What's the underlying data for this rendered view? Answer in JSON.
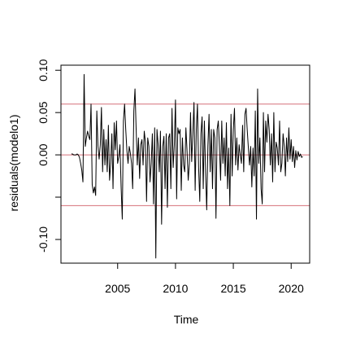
{
  "chart_data": {
    "type": "line",
    "title": "",
    "xlabel": "Time",
    "ylabel": "residuals(modelo1)",
    "xlim": [
      2000.1,
      2021.6
    ],
    "ylim": [
      -0.128,
      0.106
    ],
    "x_ticks": [
      2005,
      2010,
      2015,
      2020
    ],
    "x_tick_labels": [
      "2005",
      "2010",
      "2015",
      "2020"
    ],
    "y_ticks": [
      -0.1,
      -0.05,
      0.0,
      0.05,
      0.1
    ],
    "y_tick_labels": [
      "-0.10",
      "",
      "0.00",
      "0.05",
      "0.10"
    ],
    "grid": false,
    "legend": "none",
    "series": [
      {
        "color": "#000000",
        "points": [
          [
            2001.0,
            0.001
          ],
          [
            2001.1,
            0.001
          ],
          [
            2001.2,
            0.0
          ],
          [
            2001.3,
            0.0
          ],
          [
            2001.4,
            0.0
          ],
          [
            2001.5,
            0.001
          ],
          [
            2001.6,
            0.0
          ],
          [
            2001.7,
            -0.003
          ],
          [
            2001.8,
            -0.01
          ],
          [
            2001.9,
            -0.018
          ],
          [
            2002.0,
            -0.032
          ],
          [
            2002.1,
            0.095
          ],
          [
            2002.2,
            0.01
          ],
          [
            2002.3,
            0.02
          ],
          [
            2002.4,
            0.028
          ],
          [
            2002.5,
            0.022
          ],
          [
            2002.6,
            0.018
          ],
          [
            2002.7,
            0.06
          ],
          [
            2002.8,
            -0.035
          ],
          [
            2002.9,
            -0.045
          ],
          [
            2003.0,
            -0.038
          ],
          [
            2003.1,
            -0.048
          ],
          [
            2003.2,
            0.052
          ],
          [
            2003.3,
            0.01
          ],
          [
            2003.4,
            -0.005
          ],
          [
            2003.5,
            0.012
          ],
          [
            2003.6,
            0.056
          ],
          [
            2003.7,
            -0.02
          ],
          [
            2003.8,
            0.03
          ],
          [
            2003.9,
            -0.012
          ],
          [
            2004.0,
            0.018
          ],
          [
            2004.1,
            -0.02
          ],
          [
            2004.2,
            0.035
          ],
          [
            2004.3,
            -0.03
          ],
          [
            2004.4,
            -0.01
          ],
          [
            2004.5,
            0.025
          ],
          [
            2004.6,
            -0.04
          ],
          [
            2004.7,
            0.038
          ],
          [
            2004.8,
            0.006
          ],
          [
            2004.9,
            0.04
          ],
          [
            2005.0,
            -0.01
          ],
          [
            2005.1,
            -0.002
          ],
          [
            2005.2,
            0.012
          ],
          [
            2005.3,
            -0.038
          ],
          [
            2005.4,
            -0.076
          ],
          [
            2005.5,
            0.04
          ],
          [
            2005.6,
            0.06
          ],
          [
            2005.7,
            0.03
          ],
          [
            2005.8,
            0.005
          ],
          [
            2005.9,
            -0.01
          ],
          [
            2006.0,
            0.01
          ],
          [
            2006.1,
            0.002
          ],
          [
            2006.2,
            -0.01
          ],
          [
            2006.3,
            -0.04
          ],
          [
            2006.4,
            0.052
          ],
          [
            2006.5,
            0.078
          ],
          [
            2006.6,
            0.03
          ],
          [
            2006.7,
            -0.012
          ],
          [
            2006.8,
            0.02
          ],
          [
            2006.9,
            -0.028
          ],
          [
            2007.0,
            0.012
          ],
          [
            2007.1,
            0.018
          ],
          [
            2007.2,
            -0.012
          ],
          [
            2007.3,
            0.028
          ],
          [
            2007.4,
            0.015
          ],
          [
            2007.5,
            -0.055
          ],
          [
            2007.6,
            0.02
          ],
          [
            2007.7,
            0.01
          ],
          [
            2007.8,
            -0.032
          ],
          [
            2007.9,
            -0.01
          ],
          [
            2008.0,
            0.025
          ],
          [
            2008.1,
            -0.058
          ],
          [
            2008.2,
            0.032
          ],
          [
            2008.3,
            -0.122
          ],
          [
            2008.4,
            0.03
          ],
          [
            2008.5,
            0.012
          ],
          [
            2008.6,
            -0.02
          ],
          [
            2008.7,
            0.028
          ],
          [
            2008.8,
            -0.082
          ],
          [
            2008.9,
            0.01
          ],
          [
            2009.0,
            0.022
          ],
          [
            2009.1,
            -0.04
          ],
          [
            2009.2,
            0.025
          ],
          [
            2009.3,
            -0.062
          ],
          [
            2009.4,
            0.02
          ],
          [
            2009.5,
            0.025
          ],
          [
            2009.6,
            -0.04
          ],
          [
            2009.7,
            0.055
          ],
          [
            2009.8,
            -0.015
          ],
          [
            2009.9,
            0.012
          ],
          [
            2010.0,
            0.065
          ],
          [
            2010.1,
            -0.052
          ],
          [
            2010.2,
            0.032
          ],
          [
            2010.3,
            0.025
          ],
          [
            2010.4,
            0.03
          ],
          [
            2010.5,
            -0.042
          ],
          [
            2010.6,
            0.02
          ],
          [
            2010.7,
            -0.012
          ],
          [
            2010.8,
            -0.02
          ],
          [
            2010.9,
            0.032
          ],
          [
            2011.0,
            0.005
          ],
          [
            2011.1,
            -0.03
          ],
          [
            2011.2,
            -0.01
          ],
          [
            2011.3,
            0.05
          ],
          [
            2011.4,
            -0.008
          ],
          [
            2011.5,
            0.025
          ],
          [
            2011.6,
            0.062
          ],
          [
            2011.7,
            -0.042
          ],
          [
            2011.8,
            0.03
          ],
          [
            2011.9,
            0.06
          ],
          [
            2012.0,
            -0.015
          ],
          [
            2012.1,
            -0.055
          ],
          [
            2012.2,
            0.025
          ],
          [
            2012.3,
            0.045
          ],
          [
            2012.4,
            -0.04
          ],
          [
            2012.5,
            0.04
          ],
          [
            2012.6,
            -0.02
          ],
          [
            2012.7,
            -0.065
          ],
          [
            2012.8,
            0.01
          ],
          [
            2012.9,
            0.048
          ],
          [
            2013.0,
            -0.02
          ],
          [
            2013.1,
            0.03
          ],
          [
            2013.2,
            -0.04
          ],
          [
            2013.3,
            0.03
          ],
          [
            2013.4,
            0.02
          ],
          [
            2013.5,
            -0.075
          ],
          [
            2013.6,
            0.03
          ],
          [
            2013.7,
            0.04
          ],
          [
            2013.8,
            0.01
          ],
          [
            2013.9,
            -0.03
          ],
          [
            2014.0,
            0.04
          ],
          [
            2014.1,
            -0.01
          ],
          [
            2014.2,
            0.02
          ],
          [
            2014.3,
            -0.025
          ],
          [
            2014.4,
            0.038
          ],
          [
            2014.5,
            -0.04
          ],
          [
            2014.6,
            0.008
          ],
          [
            2014.7,
            -0.06
          ],
          [
            2014.8,
            0.048
          ],
          [
            2014.9,
            -0.025
          ],
          [
            2015.0,
            0.03
          ],
          [
            2015.1,
            0.055
          ],
          [
            2015.2,
            -0.012
          ],
          [
            2015.3,
            0.02
          ],
          [
            2015.4,
            -0.018
          ],
          [
            2015.5,
            0.012
          ],
          [
            2015.6,
            0.0
          ],
          [
            2015.7,
            -0.01
          ],
          [
            2015.8,
            0.035
          ],
          [
            2015.9,
            -0.02
          ],
          [
            2016.0,
            0.048
          ],
          [
            2016.1,
            0.055
          ],
          [
            2016.2,
            0.03
          ],
          [
            2016.3,
            0.008
          ],
          [
            2016.4,
            -0.012
          ],
          [
            2016.5,
            0.01
          ],
          [
            2016.6,
            -0.038
          ],
          [
            2016.7,
            0.008
          ],
          [
            2016.8,
            -0.025
          ],
          [
            2016.9,
            0.052
          ],
          [
            2017.0,
            -0.076
          ],
          [
            2017.1,
            0.078
          ],
          [
            2017.2,
            -0.01
          ],
          [
            2017.3,
            0.02
          ],
          [
            2017.4,
            -0.04
          ],
          [
            2017.5,
            -0.058
          ],
          [
            2017.6,
            0.05
          ],
          [
            2017.7,
            -0.02
          ],
          [
            2017.8,
            0.04
          ],
          [
            2017.9,
            0.015
          ],
          [
            2018.0,
            0.048
          ],
          [
            2018.1,
            0.03
          ],
          [
            2018.2,
            -0.012
          ],
          [
            2018.3,
            0.025
          ],
          [
            2018.4,
            -0.032
          ],
          [
            2018.5,
            0.05
          ],
          [
            2018.6,
            -0.02
          ],
          [
            2018.7,
            0.015
          ],
          [
            2018.8,
            0.008
          ],
          [
            2018.9,
            -0.012
          ],
          [
            2019.0,
            0.04
          ],
          [
            2019.1,
            -0.02
          ],
          [
            2019.2,
            -0.01
          ],
          [
            2019.3,
            0.025
          ],
          [
            2019.4,
            0.01
          ],
          [
            2019.5,
            -0.025
          ],
          [
            2019.6,
            0.02
          ],
          [
            2019.7,
            -0.008
          ],
          [
            2019.8,
            0.032
          ],
          [
            2019.9,
            -0.005
          ],
          [
            2020.0,
            0.018
          ],
          [
            2020.1,
            -0.008
          ],
          [
            2020.2,
            0.01
          ],
          [
            2020.3,
            -0.015
          ],
          [
            2020.4,
            0.005
          ],
          [
            2020.5,
            -0.006
          ],
          [
            2020.6,
            0.004
          ],
          [
            2020.7,
            -0.002
          ],
          [
            2020.8,
            0.001
          ],
          [
            2020.9,
            -0.003
          ],
          [
            2021.0,
            -0.002
          ]
        ]
      }
    ],
    "reference_lines": [
      {
        "orientation": "horizontal",
        "y": 0.0,
        "color": "#d6707a"
      },
      {
        "orientation": "horizontal",
        "y": 0.06,
        "color": "#d6707a"
      },
      {
        "orientation": "horizontal",
        "y": -0.06,
        "color": "#d6707a"
      }
    ]
  }
}
